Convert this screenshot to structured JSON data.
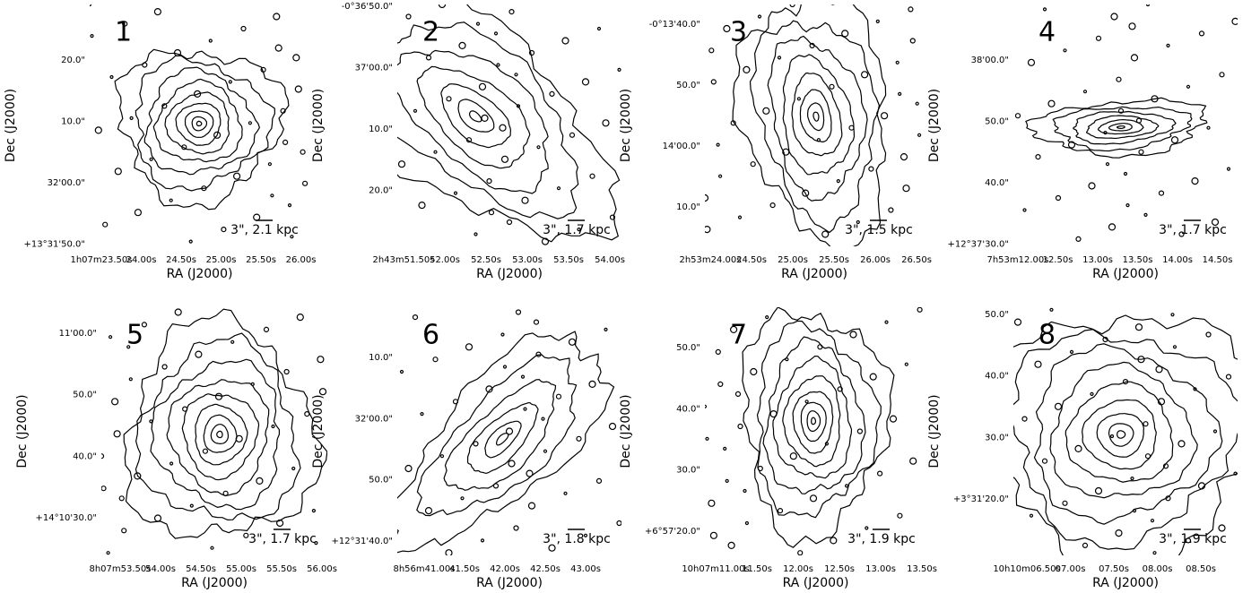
{
  "panels": [
    {
      "number": "1",
      "ylabel": "Dec (J2000)",
      "xlabel": "RA (J2000)",
      "yticks": [
        "20.0\"",
        "10.0\"",
        "32'00.0\"",
        "+13°31'50.0\""
      ],
      "xticks": [
        "1h07m23.50s",
        "24.00s",
        "24.50s",
        "25.00s",
        "25.50s",
        "26.00s"
      ],
      "scale": "3\", 2.1 kpc"
    },
    {
      "number": "2",
      "ylabel": "Dec (J2000)",
      "xlabel": "RA (J2000)",
      "yticks": [
        "-0°36'50.0\"",
        "37'00.0\"",
        "10.0\"",
        "20.0\""
      ],
      "xticks": [
        "2h43m51.50s",
        "52.00s",
        "52.50s",
        "53.00s",
        "53.50s",
        "54.00s"
      ],
      "scale": "3\", 1.7 kpc"
    },
    {
      "number": "3",
      "ylabel": "Dec (J2000)",
      "xlabel": "RA (J2000)",
      "yticks": [
        "-0°13'40.0\"",
        "50.0\"",
        "14'00.0\"",
        "10.0\""
      ],
      "xticks": [
        "2h53m24.00s",
        "24.50s",
        "25.00s",
        "25.50s",
        "26.00s",
        "26.50s"
      ],
      "scale": "3\", 1.5 kpc"
    },
    {
      "number": "4",
      "ylabel": "Dec (J2000)",
      "xlabel": "RA (J2000)",
      "yticks": [
        "38'00.0\"",
        "50.0\"",
        "40.0\"",
        "+12°37'30.0\""
      ],
      "xticks": [
        "7h53m12.00s",
        "12.50s",
        "13.00s",
        "13.50s",
        "14.00s",
        "14.50s"
      ],
      "scale": "3\", 1.7 kpc"
    },
    {
      "number": "5",
      "ylabel": "Dec (J2000)",
      "xlabel": "RA (J2000)",
      "yticks": [
        "11'00.0\"",
        "50.0\"",
        "40.0\"",
        "+14°10'30.0\""
      ],
      "xticks": [
        "8h07m53.50s",
        "54.00s",
        "54.50s",
        "55.00s",
        "55.50s",
        "56.00s"
      ],
      "scale": "3\", 1.7 kpc"
    },
    {
      "number": "6",
      "ylabel": "Dec (J2000)",
      "xlabel": "RA (J2000)",
      "yticks": [
        "10.0\"",
        "32'00.0\"",
        "50.0\"",
        "+12°31'40.0\""
      ],
      "xticks": [
        "8h56m41.00s",
        "41.50s",
        "42.00s",
        "42.50s",
        "43.00s"
      ],
      "scale": "3\", 1.8 kpc"
    },
    {
      "number": "7",
      "ylabel": "Dec (J2000)",
      "xlabel": "RA (J2000)",
      "yticks": [
        "50.0\"",
        "40.0\"",
        "30.0\"",
        "+6°57'20.0\""
      ],
      "xticks": [
        "10h07m11.00s",
        "11.50s",
        "12.00s",
        "12.50s",
        "13.00s",
        "13.50s"
      ],
      "scale": "3\", 1.9 kpc"
    },
    {
      "number": "8",
      "ylabel": "Dec (J2000)",
      "xlabel": "RA (J2000)",
      "yticks": [
        "50.0\"",
        "40.0\"",
        "30.0\"",
        "+3°31'20.0\""
      ],
      "xticks": [
        "10h10m06.50s",
        "07.00s",
        "07.50s",
        "08.00s",
        "08.50s"
      ],
      "scale": "3\", 1.9 kpc"
    }
  ]
}
